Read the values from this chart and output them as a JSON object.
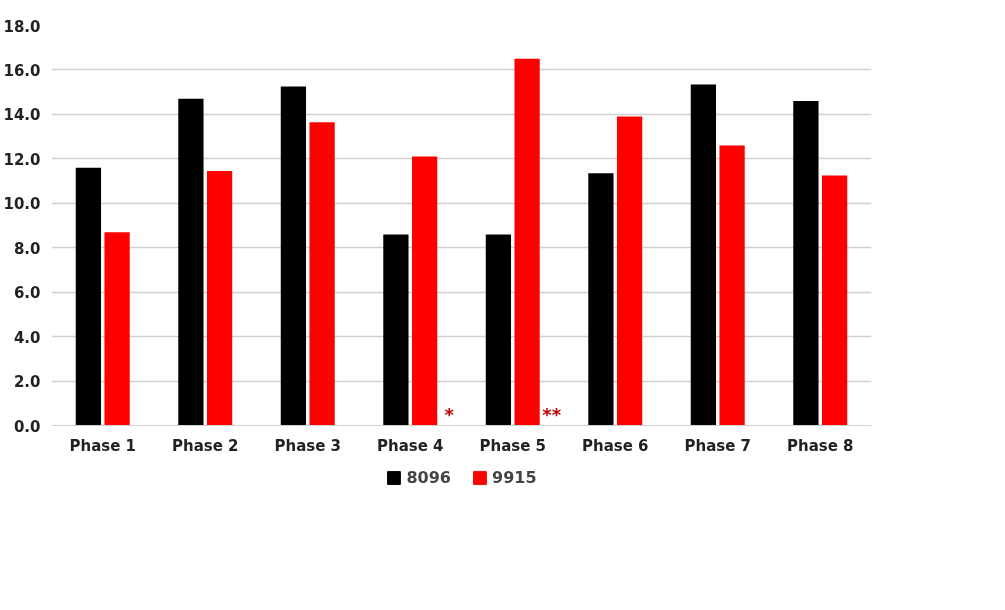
{
  "chart_data": {
    "type": "bar",
    "categories": [
      "Phase 1",
      "Phase 2",
      "Phase 3",
      "Phase 4",
      "Phase 5",
      "Phase 6",
      "Phase 7",
      "Phase 8"
    ],
    "series": [
      {
        "name": "8096",
        "color": "#000000",
        "values": [
          11.6,
          14.7,
          15.25,
          8.6,
          8.6,
          11.35,
          15.35,
          14.6
        ]
      },
      {
        "name": "9915",
        "color": "#ff0000",
        "values": [
          8.7,
          11.45,
          13.65,
          12.1,
          16.5,
          13.9,
          12.6,
          11.25
        ]
      }
    ],
    "ylim": [
      0,
      18
    ],
    "yticks": [
      {
        "value": 0,
        "label": "0.0"
      },
      {
        "value": 2,
        "label": "2.0"
      },
      {
        "value": 4,
        "label": "4.0"
      },
      {
        "value": 6,
        "label": "6.0"
      },
      {
        "value": 8,
        "label": "8.0"
      },
      {
        "value": 10,
        "label": "10.0"
      },
      {
        "value": 12,
        "label": "12.0"
      },
      {
        "value": 14,
        "label": "14.0"
      },
      {
        "value": 16,
        "label": "16.0"
      },
      {
        "value": 18,
        "label": "18.0"
      }
    ],
    "grid": "y",
    "legend": "bottom",
    "annotations": [
      {
        "text": "*",
        "x": "Phase 4",
        "y": 0
      },
      {
        "text": "**",
        "x": "Phase 5",
        "y": 0
      }
    ]
  }
}
